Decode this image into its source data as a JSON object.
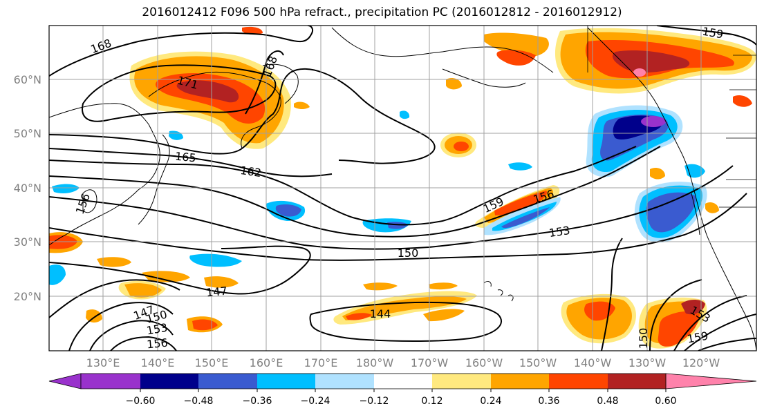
{
  "title": "2016012412 F096 500 hPa refract., precipitation PC (2016012812 - 2016012912)",
  "latitude_labels": [
    "60°N",
    "50°N",
    "40°N",
    "30°N",
    "20°N"
  ],
  "longitude_labels": [
    "130°E",
    "140°E",
    "150°E",
    "160°E",
    "170°E",
    "180°W",
    "170°W",
    "160°W",
    "150°W",
    "140°W",
    "130°W",
    "120°W"
  ],
  "contour_labels": [
    "168",
    "171",
    "168",
    "165",
    "162",
    "159",
    "156",
    "153",
    "150",
    "147",
    "144",
    "147",
    "150",
    "153",
    "156",
    "159",
    "156",
    "153",
    "159",
    "150"
  ],
  "colorbar": {
    "tick_labels": [
      "−0.60",
      "−0.48",
      "−0.36",
      "−0.24",
      "−0.12",
      "0.12",
      "0.24",
      "0.36",
      "0.48",
      "0.60"
    ],
    "colors": [
      "#9932cc",
      "#00008b",
      "#3a5bd0",
      "#00bfff",
      "#b0e2ff",
      "#ffffff",
      "#ffe97f",
      "#ffa500",
      "#ff4500",
      "#b22222",
      "#ff82ab"
    ]
  },
  "colors": {
    "orange_light": "#ffe97f",
    "orange": "#ffa500",
    "red_orange": "#ff4500",
    "dark_red": "#b22222",
    "pink": "#ff82ab",
    "light_blue": "#b0e2ff",
    "sky_blue": "#00bfff",
    "royal_blue": "#3a5bd0",
    "navy": "#00008b",
    "purple": "#9932cc"
  }
}
